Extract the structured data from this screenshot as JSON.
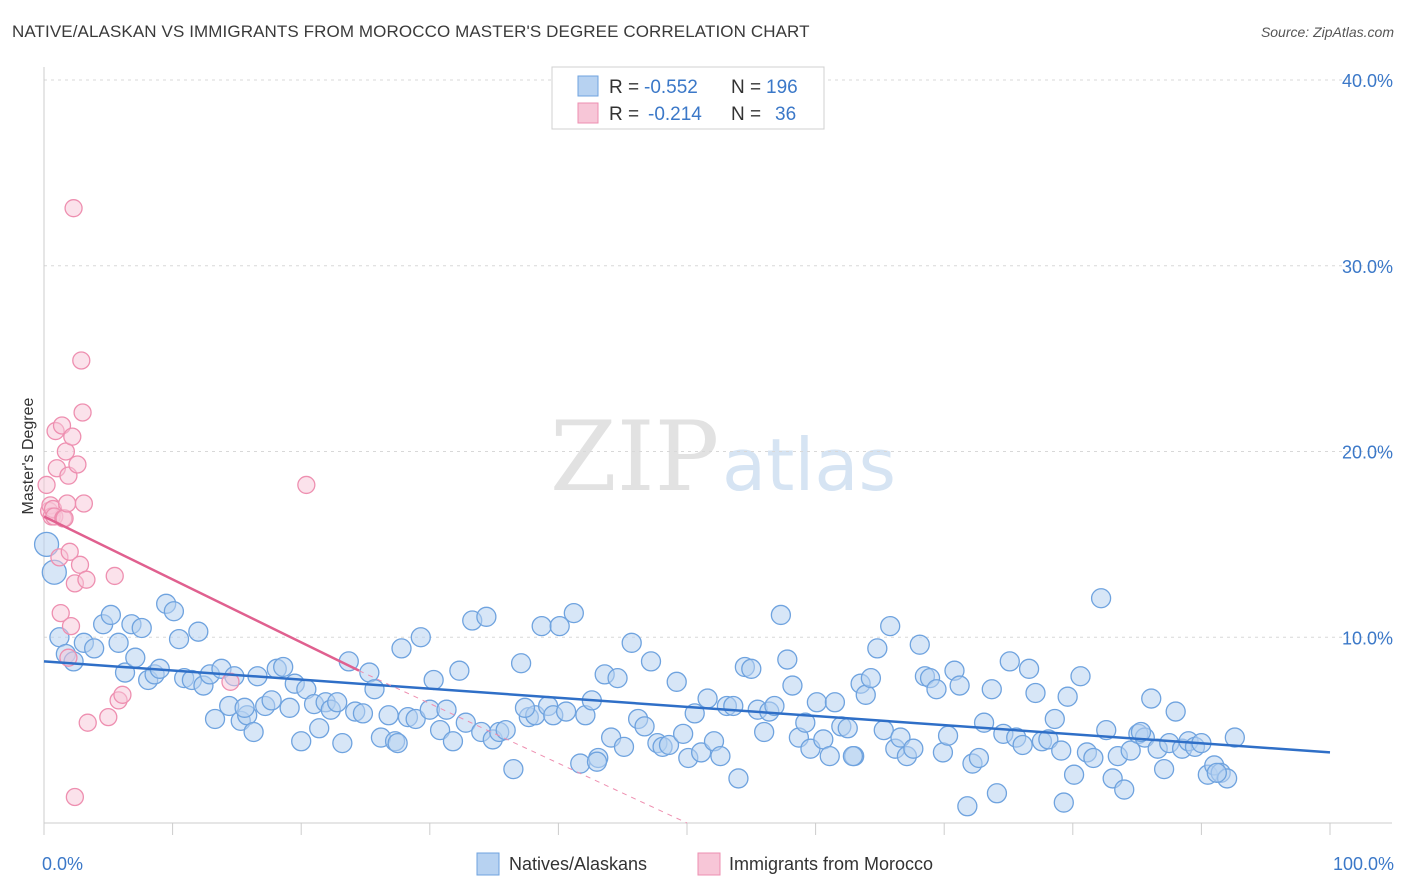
{
  "title": "NATIVE/ALASKAN VS IMMIGRANTS FROM MOROCCO MASTER'S DEGREE CORRELATION CHART",
  "source": "Source: ZipAtlas.com",
  "watermark": {
    "zip": "ZIP",
    "atlas": "atlas"
  },
  "colors": {
    "blue": "#6fa3df",
    "blue_fill": "#b7d2f1",
    "blue_line": "#2f6fc7",
    "pink": "#ee8fb0",
    "pink_fill": "#f7c6d7",
    "pink_line": "#e0608f",
    "grid": "#d8d8d8",
    "axis": "#cccccc",
    "tick_text": "#3b78c8"
  },
  "legend": {
    "rows": [
      {
        "r_label": "R = ",
        "r_value": "-0.552",
        "n_label": "N = ",
        "n_value": "196"
      },
      {
        "r_label": "R = ",
        "r_value": "-0.214",
        "n_label": "N = ",
        "n_value": "36"
      }
    ]
  },
  "chart_data": {
    "type": "scatter",
    "title": "NATIVE/ALASKAN VS IMMIGRANTS FROM MOROCCO MASTER'S DEGREE CORRELATION CHART",
    "xlabel": "",
    "ylabel": "Master's Degree",
    "xlim": [
      0,
      100
    ],
    "ylim": [
      0,
      40
    ],
    "x_tick_labels": [
      "0.0%",
      "100.0%"
    ],
    "y_ticks": [
      10,
      20,
      30,
      40
    ],
    "y_tick_labels": [
      "10.0%",
      "20.0%",
      "30.0%",
      "40.0%"
    ],
    "grid": true,
    "legend_position": "top-center",
    "series": [
      {
        "name": "Natives/Alaskans",
        "color": "#6fa3df",
        "trend": {
          "x": [
            0,
            100
          ],
          "y": [
            8.7,
            3.8
          ],
          "style": "solid"
        },
        "points": [
          [
            0.2,
            15.0
          ],
          [
            0.8,
            13.5
          ],
          [
            1.2,
            10.0
          ],
          [
            1.7,
            9.1
          ],
          [
            2.3,
            8.7
          ],
          [
            3.1,
            9.7
          ],
          [
            3.9,
            9.4
          ],
          [
            4.6,
            10.7
          ],
          [
            5.2,
            11.2
          ],
          [
            5.8,
            9.7
          ],
          [
            6.3,
            8.1
          ],
          [
            6.8,
            10.7
          ],
          [
            7.1,
            8.9
          ],
          [
            7.6,
            10.5
          ],
          [
            8.1,
            7.7
          ],
          [
            8.6,
            8.0
          ],
          [
            9.0,
            8.3
          ],
          [
            9.5,
            11.8
          ],
          [
            10.1,
            11.4
          ],
          [
            10.5,
            9.9
          ],
          [
            10.9,
            7.8
          ],
          [
            11.5,
            7.7
          ],
          [
            12.0,
            10.3
          ],
          [
            12.4,
            7.4
          ],
          [
            12.9,
            8.0
          ],
          [
            13.3,
            5.6
          ],
          [
            13.8,
            8.3
          ],
          [
            14.4,
            6.3
          ],
          [
            14.8,
            7.9
          ],
          [
            15.3,
            5.5
          ],
          [
            15.8,
            5.8
          ],
          [
            16.3,
            4.9
          ],
          [
            16.6,
            7.9
          ],
          [
            17.2,
            6.3
          ],
          [
            17.7,
            6.6
          ],
          [
            18.1,
            8.3
          ],
          [
            18.6,
            8.4
          ],
          [
            19.1,
            6.2
          ],
          [
            19.5,
            7.5
          ],
          [
            20.0,
            4.4
          ],
          [
            20.4,
            7.2
          ],
          [
            21.0,
            6.4
          ],
          [
            21.4,
            5.1
          ],
          [
            21.9,
            6.5
          ],
          [
            22.3,
            6.1
          ],
          [
            22.8,
            6.5
          ],
          [
            23.2,
            4.3
          ],
          [
            23.7,
            8.7
          ],
          [
            24.2,
            6.0
          ],
          [
            24.8,
            5.9
          ],
          [
            25.3,
            8.1
          ],
          [
            25.7,
            7.2
          ],
          [
            26.2,
            4.6
          ],
          [
            26.8,
            5.8
          ],
          [
            27.3,
            4.4
          ],
          [
            27.8,
            9.4
          ],
          [
            28.3,
            5.7
          ],
          [
            28.9,
            5.6
          ],
          [
            29.3,
            10.0
          ],
          [
            30.0,
            6.1
          ],
          [
            30.3,
            7.7
          ],
          [
            30.8,
            5.0
          ],
          [
            31.3,
            6.1
          ],
          [
            31.8,
            4.4
          ],
          [
            32.3,
            8.2
          ],
          [
            32.8,
            5.4
          ],
          [
            33.3,
            10.9
          ],
          [
            34.0,
            4.9
          ],
          [
            34.4,
            11.1
          ],
          [
            34.9,
            4.5
          ],
          [
            35.4,
            4.9
          ],
          [
            35.9,
            5.0
          ],
          [
            36.5,
            2.9
          ],
          [
            37.1,
            8.6
          ],
          [
            37.7,
            5.7
          ],
          [
            38.2,
            5.8
          ],
          [
            38.7,
            10.6
          ],
          [
            39.2,
            6.3
          ],
          [
            39.6,
            5.8
          ],
          [
            40.1,
            10.6
          ],
          [
            40.6,
            6.0
          ],
          [
            41.2,
            11.3
          ],
          [
            41.7,
            3.2
          ],
          [
            42.1,
            5.8
          ],
          [
            42.6,
            6.6
          ],
          [
            43.1,
            3.5
          ],
          [
            43.6,
            8.0
          ],
          [
            44.1,
            4.6
          ],
          [
            44.6,
            7.8
          ],
          [
            45.1,
            4.1
          ],
          [
            45.7,
            9.7
          ],
          [
            46.2,
            5.6
          ],
          [
            46.7,
            5.2
          ],
          [
            47.2,
            8.7
          ],
          [
            47.7,
            4.3
          ],
          [
            48.1,
            4.1
          ],
          [
            48.6,
            4.2
          ],
          [
            49.2,
            7.6
          ],
          [
            49.7,
            4.8
          ],
          [
            50.1,
            3.5
          ],
          [
            50.6,
            5.9
          ],
          [
            51.1,
            3.8
          ],
          [
            51.6,
            6.7
          ],
          [
            52.1,
            4.4
          ],
          [
            52.6,
            3.6
          ],
          [
            53.1,
            6.3
          ],
          [
            53.6,
            6.3
          ],
          [
            54.0,
            2.4
          ],
          [
            54.5,
            8.4
          ],
          [
            55.0,
            8.3
          ],
          [
            55.5,
            6.1
          ],
          [
            56.0,
            4.9
          ],
          [
            56.4,
            6.0
          ],
          [
            56.8,
            6.3
          ],
          [
            57.3,
            11.2
          ],
          [
            57.8,
            8.8
          ],
          [
            58.2,
            7.4
          ],
          [
            58.7,
            4.6
          ],
          [
            59.2,
            5.4
          ],
          [
            59.6,
            4.0
          ],
          [
            60.1,
            6.5
          ],
          [
            60.6,
            4.5
          ],
          [
            61.1,
            3.6
          ],
          [
            61.5,
            6.5
          ],
          [
            62.0,
            5.2
          ],
          [
            62.5,
            5.1
          ],
          [
            63.0,
            3.6
          ],
          [
            63.5,
            7.5
          ],
          [
            63.9,
            6.9
          ],
          [
            64.3,
            7.8
          ],
          [
            64.8,
            9.4
          ],
          [
            65.3,
            5.0
          ],
          [
            65.8,
            10.6
          ],
          [
            66.2,
            4.0
          ],
          [
            66.6,
            4.6
          ],
          [
            67.1,
            3.6
          ],
          [
            67.6,
            4.0
          ],
          [
            68.1,
            9.6
          ],
          [
            68.5,
            7.9
          ],
          [
            68.9,
            7.8
          ],
          [
            69.4,
            7.2
          ],
          [
            69.9,
            3.8
          ],
          [
            70.3,
            4.7
          ],
          [
            70.8,
            8.2
          ],
          [
            71.2,
            7.4
          ],
          [
            71.8,
            0.9
          ],
          [
            72.2,
            3.2
          ],
          [
            72.7,
            3.5
          ],
          [
            73.1,
            5.4
          ],
          [
            73.7,
            7.2
          ],
          [
            74.1,
            1.6
          ],
          [
            74.6,
            4.8
          ],
          [
            75.1,
            8.7
          ],
          [
            75.6,
            4.6
          ],
          [
            76.1,
            4.2
          ],
          [
            76.6,
            8.3
          ],
          [
            77.1,
            7.0
          ],
          [
            77.6,
            4.4
          ],
          [
            78.1,
            4.5
          ],
          [
            78.6,
            5.6
          ],
          [
            79.1,
            3.9
          ],
          [
            79.6,
            6.8
          ],
          [
            80.1,
            2.6
          ],
          [
            80.6,
            7.9
          ],
          [
            81.1,
            3.8
          ],
          [
            81.6,
            3.5
          ],
          [
            82.2,
            12.1
          ],
          [
            82.6,
            5.0
          ],
          [
            83.1,
            2.4
          ],
          [
            83.5,
            3.6
          ],
          [
            84.0,
            1.8
          ],
          [
            84.5,
            3.9
          ],
          [
            85.1,
            4.8
          ],
          [
            85.6,
            4.6
          ],
          [
            86.1,
            6.7
          ],
          [
            86.6,
            4.0
          ],
          [
            87.1,
            2.9
          ],
          [
            87.5,
            4.3
          ],
          [
            88.0,
            6.0
          ],
          [
            88.5,
            4.0
          ],
          [
            89.0,
            4.4
          ],
          [
            89.5,
            4.1
          ],
          [
            90.0,
            4.3
          ],
          [
            90.5,
            2.6
          ],
          [
            91.0,
            3.1
          ],
          [
            91.5,
            2.7
          ],
          [
            92.0,
            2.4
          ],
          [
            92.6,
            4.6
          ],
          [
            91.2,
            2.7
          ],
          [
            79.3,
            1.1
          ],
          [
            85.3,
            4.9
          ],
          [
            62.9,
            3.6
          ],
          [
            43.0,
            3.3
          ],
          [
            37.4,
            6.2
          ],
          [
            27.5,
            4.3
          ],
          [
            15.6,
            6.2
          ]
        ]
      },
      {
        "name": "Immigrants from Morocco",
        "color": "#ee8fb0",
        "trend": {
          "x": [
            0,
            24.5
          ],
          "y": [
            16.5,
            8.2
          ],
          "style": "solid",
          "dashed_extension": {
            "x": [
              24.5,
              50
            ],
            "y": [
              8.2,
              0
            ]
          }
        },
        "points": [
          [
            0.2,
            18.2
          ],
          [
            0.4,
            16.8
          ],
          [
            0.5,
            17.1
          ],
          [
            0.6,
            16.5
          ],
          [
            0.7,
            16.9
          ],
          [
            0.8,
            16.5
          ],
          [
            0.9,
            21.1
          ],
          [
            1.0,
            19.1
          ],
          [
            1.2,
            14.3
          ],
          [
            1.3,
            11.3
          ],
          [
            1.4,
            21.4
          ],
          [
            1.5,
            16.4
          ],
          [
            1.6,
            16.4
          ],
          [
            1.7,
            20.0
          ],
          [
            1.8,
            17.2
          ],
          [
            1.9,
            18.7
          ],
          [
            2.0,
            14.6
          ],
          [
            2.1,
            10.6
          ],
          [
            2.2,
            20.8
          ],
          [
            2.3,
            33.1
          ],
          [
            2.4,
            12.9
          ],
          [
            2.6,
            19.3
          ],
          [
            2.8,
            13.9
          ],
          [
            2.9,
            24.9
          ],
          [
            3.0,
            22.1
          ],
          [
            3.1,
            17.2
          ],
          [
            3.3,
            13.1
          ],
          [
            3.4,
            5.4
          ],
          [
            2.4,
            1.4
          ],
          [
            5.0,
            5.7
          ],
          [
            5.5,
            13.3
          ],
          [
            5.8,
            6.6
          ],
          [
            6.1,
            6.9
          ],
          [
            14.5,
            7.6
          ],
          [
            20.4,
            18.2
          ],
          [
            1.9,
            8.9
          ]
        ]
      }
    ]
  },
  "bottom_legend": [
    "Natives/Alaskans",
    "Immigrants from Morocco"
  ]
}
